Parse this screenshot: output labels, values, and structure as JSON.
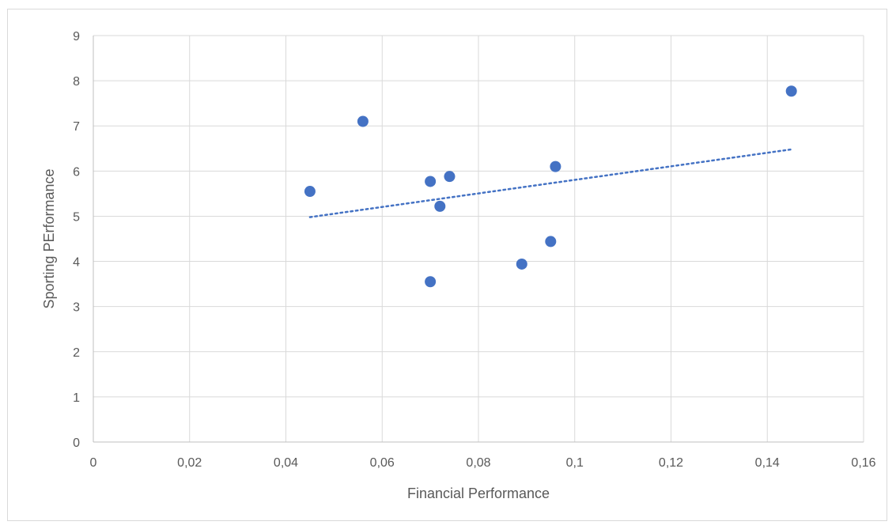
{
  "chart_data": {
    "type": "scatter",
    "title": "",
    "xlabel": "Financial Performance",
    "ylabel": "Sporting PErformance",
    "xlim": [
      0,
      0.16
    ],
    "ylim": [
      0,
      9
    ],
    "x_ticks": [
      0,
      0.02,
      0.04,
      0.06,
      0.08,
      0.1,
      0.12,
      0.14,
      0.16
    ],
    "x_tick_labels": [
      "0",
      "0,02",
      "0,04",
      "0,06",
      "0,08",
      "0,1",
      "0,12",
      "0,14",
      "0,16"
    ],
    "y_ticks": [
      0,
      1,
      2,
      3,
      4,
      5,
      6,
      7,
      8,
      9
    ],
    "y_tick_labels": [
      "0",
      "1",
      "2",
      "3",
      "4",
      "5",
      "6",
      "7",
      "8",
      "9"
    ],
    "grid": true,
    "legend": "none",
    "series": [
      {
        "points": [
          {
            "x": 0.045,
            "y": 5.55
          },
          {
            "x": 0.056,
            "y": 7.1
          },
          {
            "x": 0.07,
            "y": 5.77
          },
          {
            "x": 0.074,
            "y": 5.88
          },
          {
            "x": 0.072,
            "y": 5.22
          },
          {
            "x": 0.07,
            "y": 3.55
          },
          {
            "x": 0.089,
            "y": 3.94
          },
          {
            "x": 0.095,
            "y": 4.44
          },
          {
            "x": 0.096,
            "y": 6.1
          },
          {
            "x": 0.145,
            "y": 7.77
          }
        ],
        "color": "#4472c4"
      }
    ],
    "trendline": {
      "type": "linear",
      "style": "dotted",
      "color": "#4472c4",
      "from": {
        "x": 0.045,
        "y": 4.98
      },
      "to": {
        "x": 0.145,
        "y": 6.48
      }
    }
  }
}
